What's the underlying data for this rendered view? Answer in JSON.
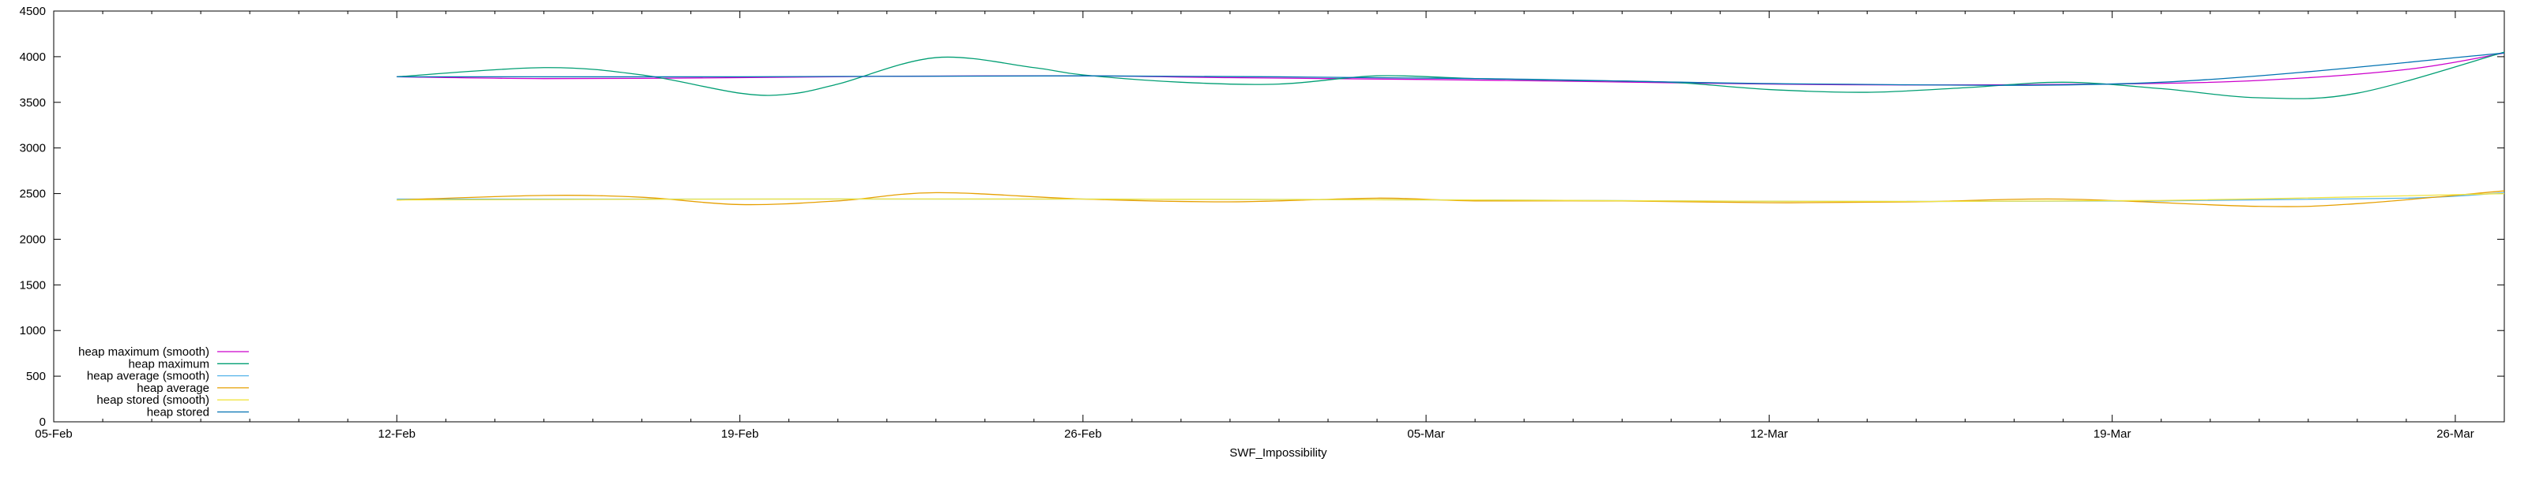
{
  "chart_data": {
    "type": "line",
    "title": "",
    "xlabel": "SWF_Impossibility",
    "ylabel": "",
    "ylim": [
      0,
      4500
    ],
    "y_ticks": [
      "0",
      "500",
      "1000",
      "1500",
      "2000",
      "2500",
      "3000",
      "3500",
      "4000",
      "4500"
    ],
    "x_ticks": [
      "05-Feb",
      "12-Feb",
      "19-Feb",
      "26-Feb",
      "05-Mar",
      "12-Mar",
      "19-Mar",
      "26-Mar"
    ],
    "x_range": [
      "2024-02-05",
      "2024-03-26"
    ],
    "grid": false,
    "legend_position": "bottom-left",
    "series": [
      {
        "name": "heap maximum (smooth)",
        "color": "#cc00cc",
        "x": [
          "2024-02-12",
          "2024-02-15",
          "2024-02-19",
          "2024-02-22",
          "2024-02-26",
          "2024-02-29",
          "2024-03-04",
          "2024-03-07",
          "2024-03-11",
          "2024-03-14",
          "2024-03-18",
          "2024-03-21",
          "2024-03-24",
          "2024-03-26"
        ],
        "values": [
          3780,
          3760,
          3770,
          3785,
          3790,
          3770,
          3750,
          3730,
          3700,
          3690,
          3700,
          3740,
          3860,
          4040
        ]
      },
      {
        "name": "heap maximum",
        "color": "#009e73",
        "x": [
          "2024-02-12",
          "2024-02-15",
          "2024-02-17",
          "2024-02-19",
          "2024-02-20",
          "2024-02-21",
          "2024-02-23",
          "2024-02-25",
          "2024-02-26",
          "2024-02-28",
          "2024-03-01",
          "2024-03-03",
          "2024-03-05",
          "2024-03-07",
          "2024-03-09",
          "2024-03-11",
          "2024-03-13",
          "2024-03-15",
          "2024-03-17",
          "2024-03-19",
          "2024-03-21",
          "2024-03-23",
          "2024-03-26"
        ],
        "values": [
          3780,
          3880,
          3800,
          3600,
          3590,
          3700,
          3990,
          3880,
          3800,
          3720,
          3700,
          3790,
          3760,
          3740,
          3720,
          3640,
          3610,
          3660,
          3720,
          3650,
          3550,
          3600,
          4050
        ]
      },
      {
        "name": "heap average (smooth)",
        "color": "#56b4e9",
        "x": [
          "2024-02-12",
          "2024-02-19",
          "2024-02-26",
          "2024-03-05",
          "2024-03-12",
          "2024-03-19",
          "2024-03-24",
          "2024-03-26"
        ],
        "values": [
          2440,
          2440,
          2440,
          2430,
          2415,
          2420,
          2450,
          2510
        ]
      },
      {
        "name": "heap average",
        "color": "#e69f00",
        "x": [
          "2024-02-12",
          "2024-02-15",
          "2024-02-17",
          "2024-02-19",
          "2024-02-21",
          "2024-02-23",
          "2024-02-26",
          "2024-02-29",
          "2024-03-03",
          "2024-03-05",
          "2024-03-08",
          "2024-03-11",
          "2024-03-14",
          "2024-03-17",
          "2024-03-21",
          "2024-03-23",
          "2024-03-26"
        ],
        "values": [
          2430,
          2480,
          2460,
          2380,
          2420,
          2510,
          2440,
          2410,
          2450,
          2420,
          2420,
          2400,
          2410,
          2440,
          2360,
          2390,
          2530
        ]
      },
      {
        "name": "heap stored (smooth)",
        "color": "#f0e442",
        "x": [
          "2024-02-12",
          "2024-02-19",
          "2024-02-26",
          "2024-03-05",
          "2024-03-12",
          "2024-03-19",
          "2024-03-26"
        ],
        "values": [
          2430,
          2440,
          2440,
          2430,
          2415,
          2425,
          2500
        ]
      },
      {
        "name": "heap stored",
        "color": "#0072b2",
        "x": [
          "2024-02-12",
          "2024-02-19",
          "2024-02-26",
          "2024-03-05",
          "2024-03-12",
          "2024-03-19",
          "2024-03-26"
        ],
        "values": [
          3780,
          3780,
          3790,
          3760,
          3700,
          3720,
          4040
        ]
      }
    ]
  }
}
